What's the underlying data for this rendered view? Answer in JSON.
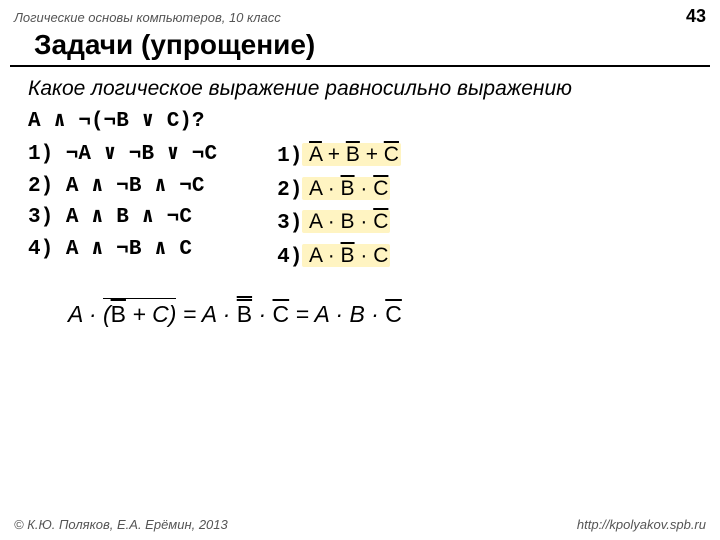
{
  "header": {
    "course": "Логические основы компьютеров, 10 класс",
    "page": "43"
  },
  "title": "Задачи (упрощение)",
  "question": "Какое логическое выражение равносильно выражению",
  "expr": "A ∧ ¬(¬B ∨ C)?",
  "left_opts": {
    "n1": "1)",
    "e1": "¬A ∨ ¬B ∨ ¬C",
    "n2": "2)",
    "e2": "A ∧ ¬B ∧ ¬C",
    "n3": "3)",
    "e3": "A ∧ B ∧ ¬C",
    "n4": "4)",
    "e4": "A ∧ ¬B ∧ C"
  },
  "right_opts": {
    "n1": "1)",
    "n2": "2)",
    "n3": "3)",
    "n4": "4)"
  },
  "footer": {
    "copyright": "© К.Ю. Поляков, Е.А. Ерёмин, 2013",
    "url": "http://kpolyakov.spb.ru"
  },
  "colors": {
    "highlight": "#fff4c2",
    "text": "#000000",
    "meta": "#555555"
  }
}
